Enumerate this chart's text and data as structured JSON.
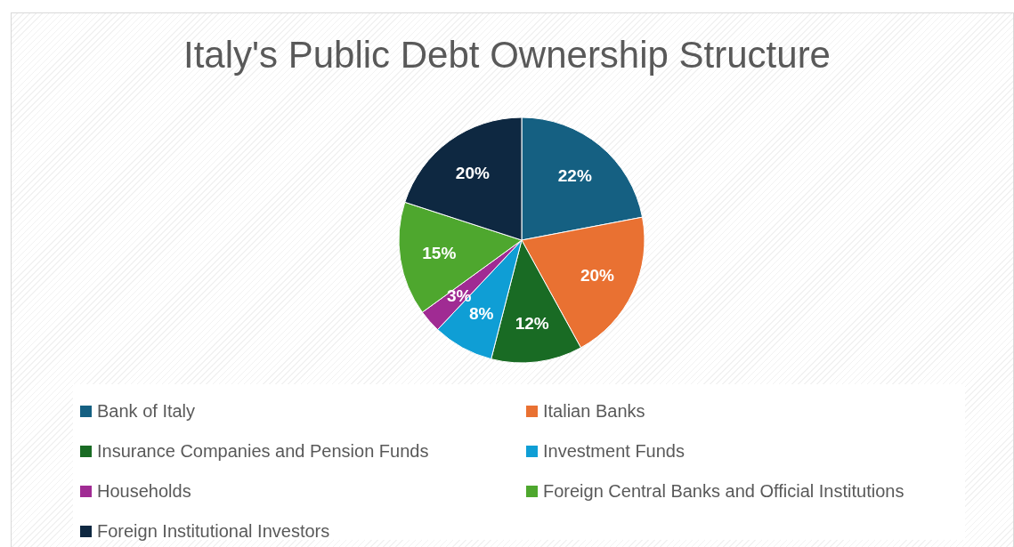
{
  "chart_data": {
    "type": "pie",
    "title": "Italy's Public Debt Ownership Structure",
    "categories": [
      "Bank of Italy",
      "Italian Banks",
      "Insurance Companies and Pension Funds",
      "Investment Funds",
      "Households",
      "Foreign Central Banks and Official Institutions",
      "Foreign Institutional Investors"
    ],
    "values": [
      22,
      20,
      12,
      8,
      3,
      15,
      20
    ],
    "value_labels": [
      "22%",
      "20%",
      "12%",
      "8%",
      "3%",
      "15%",
      "20%"
    ],
    "colors": [
      "#156082",
      "#e97132",
      "#196b24",
      "#0f9ed5",
      "#a02b93",
      "#4ea72e",
      "#0e2841"
    ],
    "legend": "bottom"
  }
}
